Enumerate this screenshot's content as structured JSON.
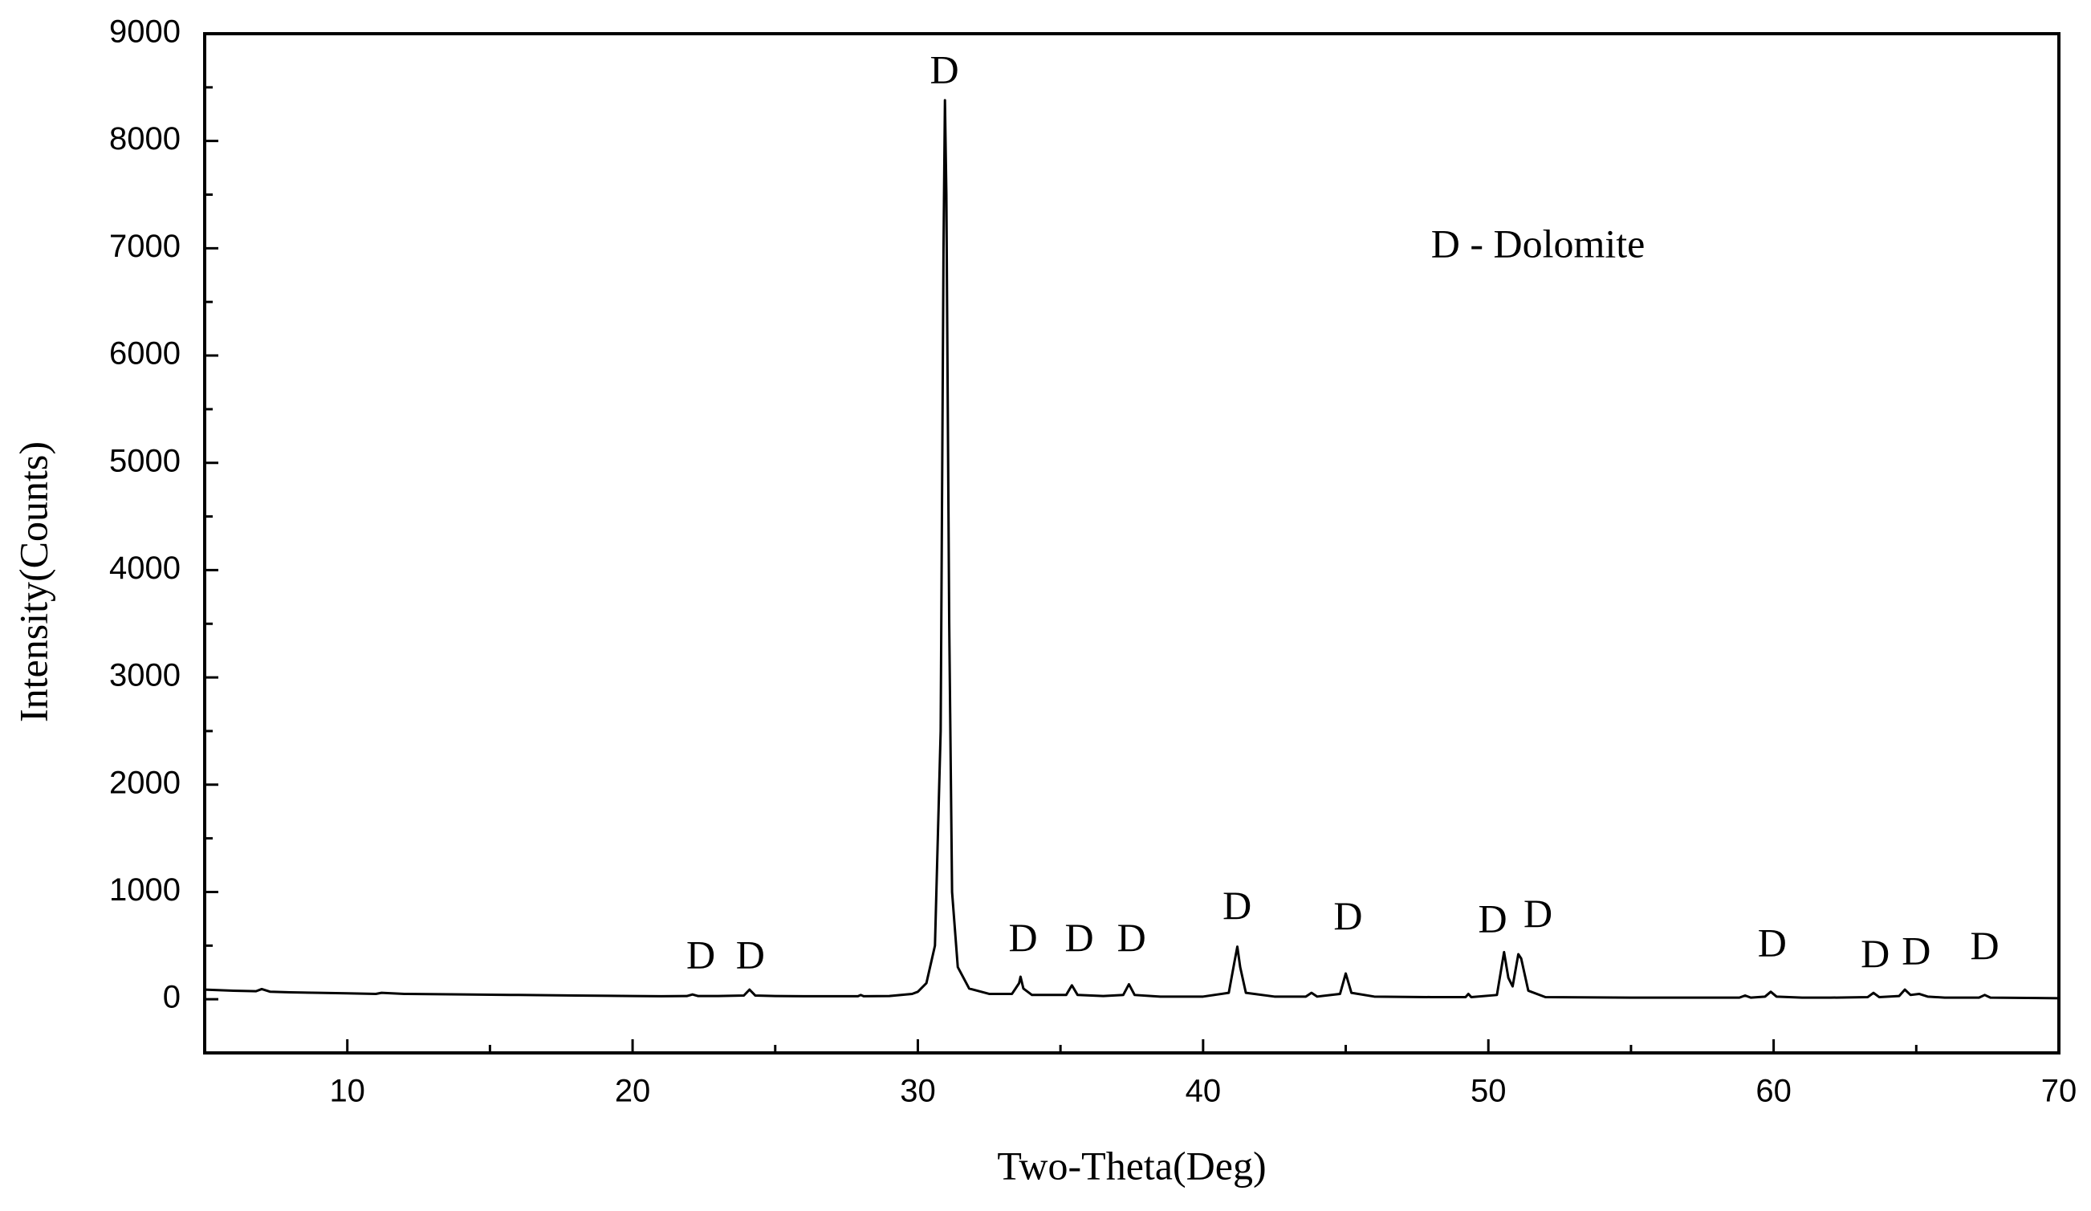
{
  "chart_data": {
    "type": "line",
    "x_label": "Two-Theta(Deg)",
    "y_label": "Intensity(Counts)",
    "xlim": [
      5,
      70
    ],
    "ylim": [
      -500,
      9000
    ],
    "xticks": [
      10,
      20,
      30,
      40,
      50,
      60,
      70
    ],
    "xminorticks": [
      15,
      25,
      35,
      45,
      55,
      65
    ],
    "yticks": [
      0,
      1000,
      2000,
      3000,
      4000,
      5000,
      6000,
      7000,
      8000,
      9000
    ],
    "yminorticks": [
      500,
      1500,
      2500,
      3500,
      4500,
      5500,
      6500,
      7500,
      8500
    ],
    "grid": false,
    "series": [
      {
        "color": "#000000",
        "x": [
          5,
          6,
          6.8,
          7,
          7.3,
          8,
          9,
          10,
          11,
          11.2,
          12,
          14,
          16,
          18,
          20,
          21,
          21.9,
          22.1,
          22.3,
          23,
          23.9,
          24.1,
          24.3,
          25,
          26,
          27,
          27.9,
          28,
          28.1,
          29,
          29.8,
          30,
          30.3,
          30.6,
          30.8,
          30.9,
          30.95,
          31.0,
          31.1,
          31.2,
          31.4,
          31.8,
          32.5,
          33.3,
          33.55,
          33.6,
          33.7,
          34,
          35.2,
          35.4,
          35.6,
          36.5,
          37.2,
          37.4,
          37.6,
          38.5,
          40,
          40.9,
          41.1,
          41.2,
          41.3,
          41.5,
          42.5,
          43.6,
          43.8,
          44,
          44.8,
          45.0,
          45.2,
          46,
          48,
          49.2,
          49.3,
          49.4,
          50.3,
          50.55,
          50.7,
          50.85,
          51.05,
          51.15,
          51.4,
          52,
          55,
          58.8,
          59,
          59.2,
          59.7,
          59.9,
          60.1,
          61,
          62,
          63.3,
          63.5,
          63.7,
          64.4,
          64.6,
          64.8,
          65.1,
          65.4,
          66,
          67.2,
          67.4,
          67.6,
          70
        ],
        "values": [
          90,
          80,
          75,
          95,
          70,
          65,
          60,
          55,
          50,
          60,
          50,
          45,
          40,
          35,
          30,
          28,
          30,
          45,
          30,
          30,
          35,
          90,
          35,
          30,
          28,
          28,
          28,
          40,
          28,
          30,
          50,
          70,
          150,
          500,
          2500,
          7000,
          8380,
          7500,
          3500,
          1000,
          300,
          100,
          50,
          50,
          150,
          210,
          100,
          40,
          40,
          130,
          40,
          30,
          40,
          140,
          40,
          25,
          25,
          60,
          350,
          490,
          300,
          60,
          25,
          25,
          60,
          25,
          50,
          240,
          60,
          25,
          20,
          20,
          50,
          20,
          40,
          440,
          200,
          120,
          420,
          380,
          80,
          20,
          15,
          15,
          35,
          15,
          25,
          70,
          25,
          15,
          15,
          20,
          60,
          20,
          30,
          90,
          40,
          50,
          25,
          15,
          15,
          40,
          15,
          10
        ]
      }
    ],
    "annotations": [
      {
        "text": "D",
        "x": 22.39,
        "y": 375
      },
      {
        "text": "D",
        "x": 24.13,
        "y": 375
      },
      {
        "text": "D",
        "x": 30.93,
        "y": 8627
      },
      {
        "text": "D",
        "x": 33.69,
        "y": 537
      },
      {
        "text": "D",
        "x": 35.66,
        "y": 537
      },
      {
        "text": "D",
        "x": 37.49,
        "y": 537
      },
      {
        "text": "D",
        "x": 41.19,
        "y": 836
      },
      {
        "text": "D",
        "x": 45.08,
        "y": 737
      },
      {
        "text": "D",
        "x": 50.15,
        "y": 712
      },
      {
        "text": "D",
        "x": 51.74,
        "y": 762
      },
      {
        "text": "D",
        "x": 59.95,
        "y": 487
      },
      {
        "text": "D",
        "x": 63.56,
        "y": 387
      },
      {
        "text": "D",
        "x": 65.0,
        "y": 412
      },
      {
        "text": "D",
        "x": 67.4,
        "y": 462
      },
      {
        "text": "D - Dolomite",
        "x": 51.74,
        "y": 7004
      }
    ]
  }
}
